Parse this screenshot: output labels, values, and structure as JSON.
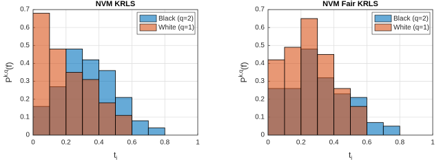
{
  "chart_data": [
    {
      "type": "histogram",
      "title": "NVM KRLS",
      "xlabel": "t",
      "xlabel_sub": "i",
      "ylabel": "P",
      "ylabel_sup": "k,q",
      "ylabel_tail": "(f)",
      "bins": [
        0,
        0.1,
        0.2,
        0.3,
        0.4,
        0.5,
        0.6,
        0.7,
        0.8,
        0.9,
        1
      ],
      "series": [
        {
          "name": "Black (q=2)",
          "color": "#0072bd",
          "values": [
            0.16,
            0.27,
            0.48,
            0.42,
            0.36,
            0.21,
            0.08,
            0.04,
            0,
            0
          ]
        },
        {
          "name": "White (q=1)",
          "color": "#d95319",
          "values": [
            0.68,
            0.48,
            0.35,
            0.31,
            0.18,
            0.11,
            0,
            0,
            0,
            0
          ]
        }
      ],
      "xlim": [
        0,
        1
      ],
      "xticks": [
        0,
        0.2,
        0.4,
        0.6,
        0.8,
        1
      ],
      "ylim": [
        0,
        0.7
      ],
      "yticks": [
        0,
        0.1,
        0.2,
        0.3,
        0.4,
        0.5,
        0.6,
        0.7
      ],
      "grid": true,
      "legend": "northeast"
    },
    {
      "type": "histogram",
      "title": "NVM Fair KRLS",
      "xlabel": "t",
      "xlabel_sub": "i",
      "ylabel": "P",
      "ylabel_sup": "k,q",
      "ylabel_tail": "(f)",
      "bins": [
        0,
        0.1,
        0.2,
        0.3,
        0.4,
        0.5,
        0.6,
        0.7,
        0.8,
        0.9,
        1
      ],
      "series": [
        {
          "name": "Black (q=2)",
          "color": "#0072bd",
          "values": [
            0.26,
            0.26,
            0.48,
            0.32,
            0.23,
            0.21,
            0.07,
            0.05,
            0,
            0
          ]
        },
        {
          "name": "White (q=1)",
          "color": "#d95319",
          "values": [
            0.42,
            0.49,
            0.65,
            0.45,
            0.26,
            0.16,
            0,
            0,
            0,
            0
          ]
        }
      ],
      "xlim": [
        0,
        1
      ],
      "xticks": [
        0,
        0.2,
        0.4,
        0.6,
        0.8,
        1
      ],
      "ylim": [
        0,
        0.7
      ],
      "yticks": [
        0,
        0.1,
        0.2,
        0.3,
        0.4,
        0.5,
        0.6,
        0.7
      ],
      "grid": true,
      "legend": "northeast"
    }
  ]
}
